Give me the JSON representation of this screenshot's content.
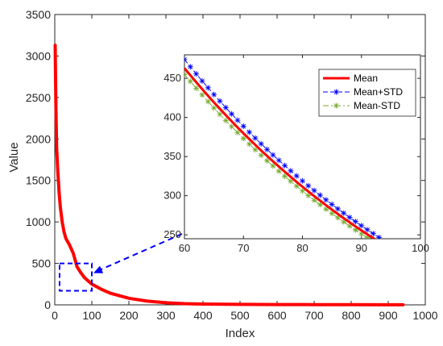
{
  "chart_data": {
    "type": "line",
    "xlabel": "Index",
    "ylabel": "Value",
    "xlim": [
      0,
      1000
    ],
    "ylim": [
      0,
      3500
    ],
    "xticks": [
      0,
      100,
      200,
      300,
      400,
      500,
      600,
      700,
      800,
      900,
      1000
    ],
    "yticks": [
      0,
      500,
      1000,
      1500,
      2000,
      2500,
      3000,
      3500
    ],
    "grid": false,
    "series": [
      {
        "name": "Mean",
        "color": "#ff0000",
        "x": [
          1,
          3,
          5,
          8,
          10,
          12,
          15,
          20,
          25,
          30,
          40,
          50,
          60,
          70,
          80,
          90,
          100,
          125,
          150,
          175,
          200,
          250,
          300,
          350,
          400,
          500,
          600,
          700,
          800,
          900,
          940
        ],
        "y": [
          3130,
          2400,
          1900,
          1620,
          1480,
          1340,
          1180,
          1000,
          880,
          800,
          720,
          620,
          460,
          390,
          330,
          290,
          250,
          190,
          140,
          110,
          80,
          45,
          25,
          15,
          10,
          6,
          4,
          3,
          2,
          1,
          1
        ]
      }
    ],
    "zoom_box": {
      "x": [
        20,
        100
      ],
      "y": [
        170,
        500
      ],
      "color": "#0000ff"
    },
    "inset": {
      "xlim": [
        60,
        100
      ],
      "ylim": [
        245,
        480
      ],
      "xticks": [
        60,
        70,
        80,
        90,
        100
      ],
      "yticks": [
        250,
        300,
        350,
        400,
        450
      ],
      "legend_position": "top-right",
      "series": [
        {
          "name": "Mean",
          "color": "#ff0000",
          "style": "solid",
          "marker": "none"
        },
        {
          "name": "Mean+STD",
          "color": "#0000ff",
          "style": "dashed",
          "marker": "asterisk"
        },
        {
          "name": "Mean-STD",
          "color": "#77ac30",
          "style": "dashdot",
          "marker": "asterisk"
        }
      ],
      "x": [
        60,
        61,
        62,
        63,
        64,
        65,
        66,
        67,
        68,
        69,
        70,
        71,
        72,
        73,
        74,
        75,
        76,
        77,
        78,
        79,
        80,
        81,
        82,
        83,
        84,
        85,
        86,
        87,
        88,
        89,
        90,
        91,
        92,
        93,
        94,
        95,
        96,
        97,
        98,
        99,
        100
      ],
      "mean": [
        463.0,
        453.9,
        445.0,
        436.2,
        427.7,
        419.3,
        411.1,
        403.0,
        395.1,
        387.3,
        379.7,
        372.3,
        365.0,
        357.8,
        350.8,
        343.9,
        337.2,
        330.6,
        324.1,
        317.7,
        311.5,
        305.4,
        299.4,
        293.6,
        287.8,
        282.2,
        276.6,
        271.2,
        265.9,
        260.7,
        255.6,
        250.6,
        245.7,
        240.9,
        236.2,
        231.5,
        227.0,
        222.5,
        218.2,
        213.9,
        209.7
      ],
      "mean_plus_std": [
        474.0,
        464.7,
        455.6,
        446.6,
        437.9,
        429.3,
        420.9,
        412.6,
        404.5,
        396.5,
        388.8,
        381.1,
        373.6,
        366.3,
        359.1,
        352.1,
        345.2,
        338.5,
        331.8,
        325.3,
        318.9,
        312.7,
        306.6,
        300.6,
        294.7,
        288.9,
        283.2,
        277.7,
        272.2,
        266.9,
        261.7,
        256.5,
        251.5,
        246.6,
        241.7,
        237.0,
        232.4,
        227.8,
        223.4,
        219.0,
        214.7
      ],
      "mean_minus_std": [
        455.0,
        446.1,
        437.3,
        428.7,
        420.3,
        412.1,
        404.0,
        396.1,
        388.3,
        380.7,
        373.2,
        365.9,
        358.7,
        351.6,
        344.7,
        338.0,
        331.4,
        324.9,
        318.5,
        312.3,
        306.1,
        300.1,
        294.2,
        288.5,
        282.8,
        277.3,
        271.9,
        266.5,
        261.3,
        256.2,
        251.2,
        246.3,
        241.5,
        236.7,
        232.1,
        227.6,
        223.1,
        218.7,
        214.4,
        210.2,
        206.1
      ]
    }
  }
}
